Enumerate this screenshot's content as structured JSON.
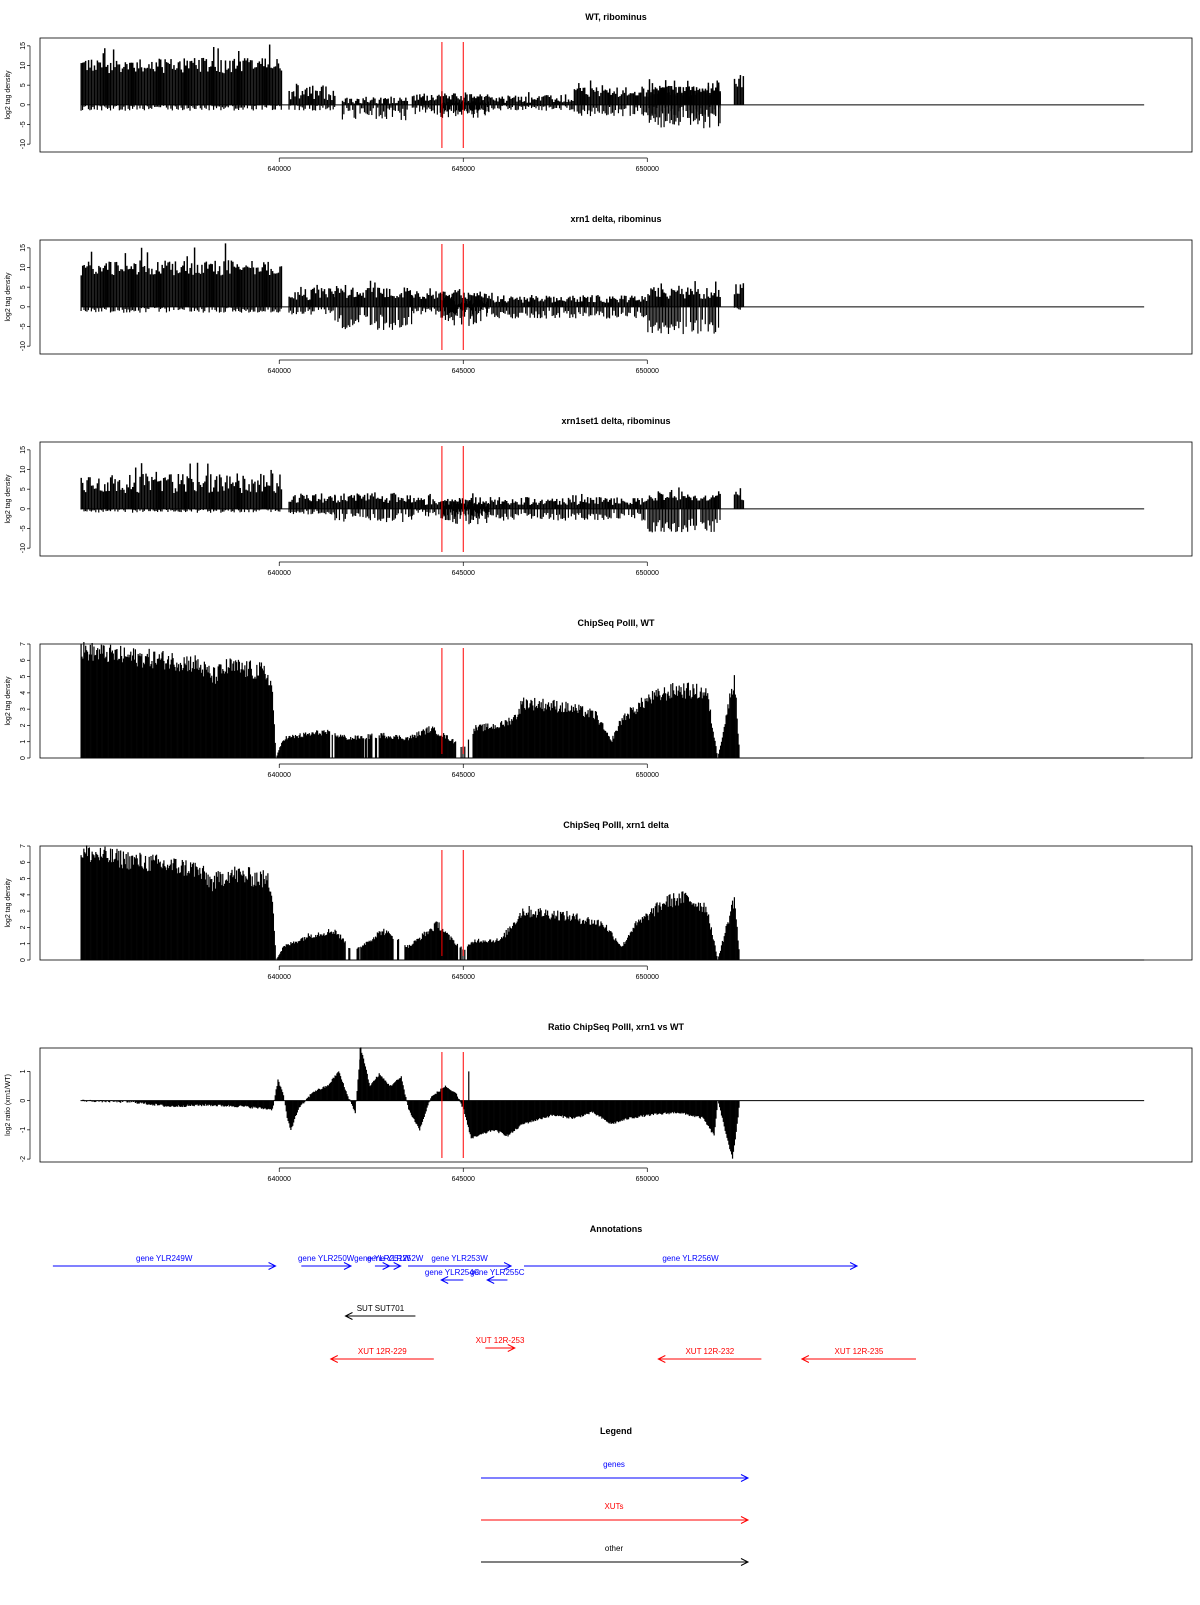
{
  "chart_data": [
    {
      "type": "bar",
      "title": "WT, ribominus",
      "ylabel": "log2 tag density",
      "ylim": [
        -12,
        17
      ],
      "yticks": [
        -10,
        -5,
        0,
        5,
        10,
        15
      ],
      "xlim": [
        633500,
        664800
      ],
      "xticks": [
        640000,
        645000,
        650000
      ],
      "markers": [
        644420,
        645000
      ],
      "segments": [
        {
          "from": 634600,
          "to": 640050,
          "pos": [
            8,
            12
          ],
          "neg": [
            0,
            1.5
          ]
        },
        {
          "from": 640250,
          "to": 641500,
          "pos": [
            1,
            5
          ],
          "neg": [
            0,
            1.5
          ]
        },
        {
          "from": 641700,
          "to": 643500,
          "pos": [
            0.3,
            2
          ],
          "neg": [
            0.5,
            4
          ]
        },
        {
          "from": 643600,
          "to": 645800,
          "pos": [
            1,
            3
          ],
          "neg": [
            0.3,
            2.5
          ]
        },
        {
          "from": 644380,
          "to": 645700,
          "pos": [
            0.2,
            1
          ],
          "neg": [
            1,
            3.5
          ]
        },
        {
          "from": 645800,
          "to": 648000,
          "pos": [
            0.5,
            2.5
          ],
          "neg": [
            0.3,
            1.5
          ]
        },
        {
          "from": 648000,
          "to": 652000,
          "pos": [
            2,
            5
          ],
          "neg": [
            0.5,
            3
          ]
        },
        {
          "from": 650000,
          "to": 652000,
          "pos": [
            2.5,
            5
          ],
          "neg": [
            2,
            6
          ]
        },
        {
          "from": 652350,
          "to": 652600,
          "pos": [
            4,
            8
          ],
          "neg": [
            0,
            0
          ]
        }
      ]
    },
    {
      "type": "bar",
      "title": "xrn1 delta, ribominus",
      "ylabel": "log2 tag density",
      "ylim": [
        -12,
        17
      ],
      "yticks": [
        -10,
        -5,
        0,
        5,
        10,
        15
      ],
      "xlim": [
        633500,
        664800
      ],
      "xticks": [
        640000,
        645000,
        650000
      ],
      "markers": [
        644420,
        645000
      ],
      "segments": [
        {
          "from": 634600,
          "to": 640050,
          "pos": [
            8,
            12
          ],
          "neg": [
            0,
            1.5
          ]
        },
        {
          "from": 640250,
          "to": 641500,
          "pos": [
            1.5,
            5
          ],
          "neg": [
            0.5,
            2
          ]
        },
        {
          "from": 641500,
          "to": 643600,
          "pos": [
            2,
            5
          ],
          "neg": [
            2,
            6
          ]
        },
        {
          "from": 643600,
          "to": 645800,
          "pos": [
            2,
            4
          ],
          "neg": [
            0.3,
            2
          ]
        },
        {
          "from": 644380,
          "to": 645700,
          "pos": [
            0.5,
            2
          ],
          "neg": [
            2,
            5
          ]
        },
        {
          "from": 645800,
          "to": 650000,
          "pos": [
            1,
            3
          ],
          "neg": [
            1,
            3
          ]
        },
        {
          "from": 650000,
          "to": 652000,
          "pos": [
            2,
            5
          ],
          "neg": [
            3,
            7
          ]
        },
        {
          "from": 652350,
          "to": 652600,
          "pos": [
            2,
            6
          ],
          "neg": [
            0,
            1
          ]
        }
      ]
    },
    {
      "type": "bar",
      "title": "xrn1set1 delta, ribominus",
      "ylabel": "log2 tag density",
      "ylim": [
        -12,
        17
      ],
      "yticks": [
        -10,
        -5,
        0,
        5,
        10,
        15
      ],
      "xlim": [
        633500,
        664800
      ],
      "xticks": [
        640000,
        645000,
        650000
      ],
      "markers": [
        644420,
        645000
      ],
      "segments": [
        {
          "from": 634600,
          "to": 640050,
          "pos": [
            4,
            9
          ],
          "neg": [
            0,
            1
          ]
        },
        {
          "from": 640250,
          "to": 641500,
          "pos": [
            1.5,
            4
          ],
          "neg": [
            0.5,
            1.5
          ]
        },
        {
          "from": 641500,
          "to": 643600,
          "pos": [
            1.5,
            4
          ],
          "neg": [
            1,
            3.5
          ]
        },
        {
          "from": 643600,
          "to": 645800,
          "pos": [
            1,
            3
          ],
          "neg": [
            0.3,
            2
          ]
        },
        {
          "from": 644380,
          "to": 645700,
          "pos": [
            0.5,
            2
          ],
          "neg": [
            1.5,
            4
          ]
        },
        {
          "from": 645800,
          "to": 650000,
          "pos": [
            1,
            3
          ],
          "neg": [
            1,
            3
          ]
        },
        {
          "from": 650000,
          "to": 652000,
          "pos": [
            2,
            4.5
          ],
          "neg": [
            2.5,
            6
          ]
        },
        {
          "from": 652350,
          "to": 652600,
          "pos": [
            2,
            5
          ],
          "neg": [
            0,
            0
          ]
        }
      ]
    },
    {
      "type": "area",
      "title": "ChipSeq PolII, WT",
      "ylabel": "log2 tag density",
      "ylim": [
        0,
        7
      ],
      "yticks": [
        0,
        1,
        2,
        3,
        4,
        5,
        6,
        7
      ],
      "xlim": [
        633500,
        664800
      ],
      "xticks": [
        640000,
        645000,
        650000
      ],
      "markers": [
        644420,
        645000
      ],
      "profile": [
        [
          634600,
          6.6
        ],
        [
          636000,
          6.2
        ],
        [
          637000,
          6.0
        ],
        [
          637700,
          5.8
        ],
        [
          638200,
          5.0
        ],
        [
          638600,
          5.6
        ],
        [
          639500,
          5.3
        ],
        [
          639700,
          5.0
        ],
        [
          639800,
          4.0
        ],
        [
          639900,
          0
        ],
        [
          640100,
          1.2
        ],
        [
          641200,
          1.6
        ],
        [
          641900,
          1.2
        ],
        [
          642800,
          1.4
        ],
        [
          643500,
          1.2
        ],
        [
          644100,
          1.8
        ],
        [
          644600,
          1.2
        ],
        [
          645000,
          0.6
        ],
        [
          645300,
          1.8
        ],
        [
          646000,
          2.0
        ],
        [
          646400,
          2.5
        ],
        [
          646600,
          3.4
        ],
        [
          647500,
          3.2
        ],
        [
          648000,
          3.0
        ],
        [
          648600,
          2.6
        ],
        [
          649000,
          1.0
        ],
        [
          649300,
          2.4
        ],
        [
          650000,
          3.6
        ],
        [
          650800,
          4.2
        ],
        [
          651600,
          4.0
        ],
        [
          651900,
          0
        ],
        [
          652350,
          5.0
        ],
        [
          652500,
          0
        ],
        [
          664800,
          0
        ]
      ],
      "gaps": [
        [
          641300,
          641500
        ],
        [
          642300,
          642700
        ],
        [
          644800,
          645250
        ]
      ]
    },
    {
      "type": "area",
      "title": "ChipSeq PolII, xrn1 delta",
      "ylabel": "log2 tag density",
      "ylim": [
        0,
        7
      ],
      "yticks": [
        0,
        1,
        2,
        3,
        4,
        5,
        6,
        7
      ],
      "xlim": [
        633500,
        664800
      ],
      "xticks": [
        640000,
        645000,
        650000
      ],
      "markers": [
        644420,
        645000
      ],
      "profile": [
        [
          634600,
          6.6
        ],
        [
          636000,
          6.1
        ],
        [
          637000,
          5.8
        ],
        [
          637700,
          5.6
        ],
        [
          638200,
          4.7
        ],
        [
          638600,
          5.3
        ],
        [
          639500,
          5.0
        ],
        [
          639700,
          4.8
        ],
        [
          639800,
          4.0
        ],
        [
          639900,
          0
        ],
        [
          640100,
          0.8
        ],
        [
          640800,
          1.5
        ],
        [
          641500,
          1.8
        ],
        [
          642000,
          0.5
        ],
        [
          642800,
          1.8
        ],
        [
          643500,
          0.8
        ],
        [
          644000,
          1.7
        ],
        [
          644300,
          2.2
        ],
        [
          644600,
          1.4
        ],
        [
          645000,
          0.6
        ],
        [
          645300,
          1.2
        ],
        [
          646000,
          1.2
        ],
        [
          646600,
          3.0
        ],
        [
          647500,
          2.8
        ],
        [
          648000,
          2.6
        ],
        [
          648800,
          2.2
        ],
        [
          649300,
          0.8
        ],
        [
          649600,
          2.0
        ],
        [
          650500,
          3.6
        ],
        [
          651000,
          3.8
        ],
        [
          651600,
          3.2
        ],
        [
          651900,
          0
        ],
        [
          652350,
          3.8
        ],
        [
          652500,
          0
        ],
        [
          664800,
          0
        ]
      ],
      "gaps": [
        [
          641800,
          642200
        ],
        [
          643100,
          643400
        ],
        [
          644800,
          645100
        ]
      ]
    },
    {
      "type": "area",
      "title": "Ratio ChipSeq PolII, xrn1 vs WT",
      "ylabel": "log2 ratio (xrn1/WT)",
      "ylim": [
        -2.1,
        1.8
      ],
      "yticks": [
        -2,
        -1,
        0,
        1
      ],
      "xlim": [
        633500,
        664800
      ],
      "xticks": [
        640000,
        645000,
        650000
      ],
      "markers": [
        644420,
        645000
      ],
      "profile": [
        [
          634600,
          0
        ],
        [
          636000,
          -0.05
        ],
        [
          637000,
          -0.2
        ],
        [
          638000,
          -0.15
        ],
        [
          639000,
          -0.2
        ],
        [
          639800,
          -0.3
        ],
        [
          639950,
          0.7
        ],
        [
          640100,
          0.2
        ],
        [
          640200,
          -0.6
        ],
        [
          640300,
          -1.0
        ],
        [
          640500,
          -0.3
        ],
        [
          640900,
          0.3
        ],
        [
          641300,
          0.5
        ],
        [
          641600,
          1.0
        ],
        [
          641800,
          0.3
        ],
        [
          642050,
          -0.4
        ],
        [
          642200,
          1.8
        ],
        [
          642450,
          0.5
        ],
        [
          642700,
          0.9
        ],
        [
          643000,
          0.5
        ],
        [
          643300,
          0.8
        ],
        [
          643500,
          -0.3
        ],
        [
          643800,
          -1.0
        ],
        [
          644100,
          0.1
        ],
        [
          644500,
          0.5
        ],
        [
          644800,
          0.2
        ],
        [
          645000,
          -0.3
        ],
        [
          645200,
          -1.3
        ],
        [
          645400,
          -1.2
        ],
        [
          645800,
          -1.0
        ],
        [
          646200,
          -1.2
        ],
        [
          646600,
          -0.8
        ],
        [
          647400,
          -0.5
        ],
        [
          648000,
          -0.6
        ],
        [
          648500,
          -0.4
        ],
        [
          649000,
          -0.8
        ],
        [
          649500,
          -0.6
        ],
        [
          650000,
          -0.5
        ],
        [
          650800,
          -0.4
        ],
        [
          651500,
          -0.6
        ],
        [
          651800,
          -1.2
        ],
        [
          651900,
          0
        ],
        [
          652300,
          -2.0
        ],
        [
          652400,
          -1.1
        ],
        [
          652500,
          0
        ],
        [
          664800,
          0
        ]
      ],
      "spikes": [
        [
          645150,
          1.0
        ],
        [
          642200,
          1.8
        ]
      ]
    }
  ],
  "annotations": {
    "title": "Annotations",
    "xlim": [
      633500,
      664800
    ],
    "items": [
      {
        "label": "gene YLR249W",
        "kind": "gene",
        "from": 633850,
        "to": 639900,
        "dir": "right",
        "row": 0
      },
      {
        "label": "gene YLR250W",
        "kind": "gene",
        "from": 640600,
        "to": 641950,
        "dir": "right",
        "row": 0
      },
      {
        "label": "gene YLR251W",
        "kind": "gene",
        "from": 642600,
        "to": 643000,
        "dir": "right",
        "row": 0
      },
      {
        "label": "gene YLR252W",
        "kind": "gene",
        "from": 643000,
        "to": 643300,
        "dir": "right",
        "row": 0
      },
      {
        "label": "gene YLR253W",
        "kind": "gene",
        "from": 643500,
        "to": 646300,
        "dir": "right",
        "row": 0
      },
      {
        "label": "gene YLR254C",
        "kind": "gene",
        "from": 644400,
        "to": 645000,
        "dir": "left",
        "row": 1
      },
      {
        "label": "gene YLR255C",
        "kind": "gene",
        "from": 645650,
        "to": 646200,
        "dir": "left",
        "row": 1
      },
      {
        "label": "gene YLR256W",
        "kind": "gene",
        "from": 646650,
        "to": 655700,
        "dir": "right",
        "row": 0
      },
      {
        "label": "SUT SUT701",
        "kind": "other",
        "from": 641800,
        "to": 643700,
        "dir": "left",
        "row": 2
      },
      {
        "label": "XUT 12R-229",
        "kind": "xut",
        "from": 641400,
        "to": 644200,
        "dir": "left",
        "row": 4
      },
      {
        "label": "XUT 12R-253",
        "kind": "xut",
        "from": 645600,
        "to": 646400,
        "dir": "right",
        "row": 3
      },
      {
        "label": "XUT 12R-232",
        "kind": "xut",
        "from": 650300,
        "to": 653100,
        "dir": "left",
        "row": 4
      },
      {
        "label": "XUT 12R-235",
        "kind": "xut",
        "from": 654200,
        "to": 657300,
        "dir": "left",
        "row": 4
      }
    ]
  },
  "legend": {
    "title": "Legend",
    "items": [
      {
        "label": "genes",
        "color": "#0000ff"
      },
      {
        "label": "XUTs",
        "color": "#ff0000"
      },
      {
        "label": "other",
        "color": "#000000"
      }
    ]
  },
  "colors": {
    "gene": "#0000ff",
    "xut": "#ff0000",
    "other": "#000000",
    "marker": "#ff0000",
    "data": "#000000"
  }
}
